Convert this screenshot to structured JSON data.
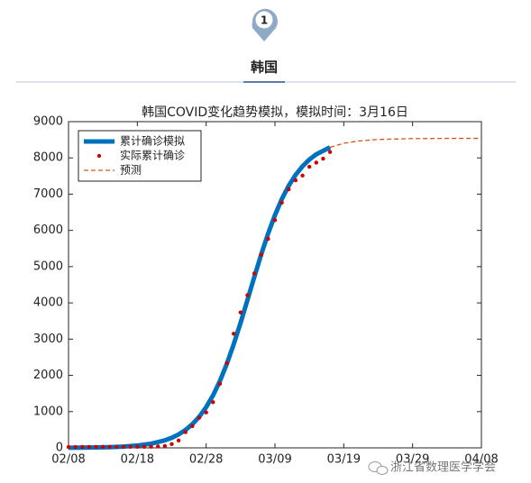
{
  "header": {
    "badge": "1",
    "title": "韩国"
  },
  "watermark": "浙江省数理医学学会",
  "chart_data": {
    "type": "line",
    "title": "韩国COVID变化趋势模拟，模拟时间：3月16日",
    "xlim": [
      0,
      60
    ],
    "xticks": [
      {
        "value": 0,
        "label": "02/08"
      },
      {
        "value": 10,
        "label": "02/18"
      },
      {
        "value": 20,
        "label": "02/28"
      },
      {
        "value": 30,
        "label": "03/09"
      },
      {
        "value": 40,
        "label": "03/19"
      },
      {
        "value": 50,
        "label": "03/29"
      },
      {
        "value": 60,
        "label": "04/08"
      }
    ],
    "ylim": [
      0,
      9000
    ],
    "yticks": [
      0,
      1000,
      2000,
      3000,
      4000,
      5000,
      6000,
      7000,
      8000,
      9000
    ],
    "grid": false,
    "legend": "upper-left",
    "series": [
      {
        "name": "累计确诊模拟",
        "color": "#0072bd",
        "style": "line",
        "x": [
          0,
          2,
          4,
          6,
          8,
          10,
          12,
          14,
          15,
          16,
          17,
          18,
          19,
          20,
          21,
          22,
          23,
          24,
          25,
          26,
          27,
          28,
          29,
          30,
          31,
          32,
          33,
          34,
          35,
          36,
          38
        ],
        "values": [
          3,
          6,
          11,
          19,
          35,
          64,
          115,
          208,
          278,
          371,
          494,
          654,
          859,
          1121,
          1447,
          1844,
          2314,
          2856,
          3448,
          4078,
          4716,
          5337,
          5910,
          6421,
          6865,
          7231,
          7531,
          7769,
          7955,
          8099,
          8292
        ]
      },
      {
        "name": "实际累计确诊",
        "color": "#d00000",
        "style": "dots",
        "x": [
          0,
          1,
          2,
          3,
          4,
          5,
          6,
          7,
          8,
          9,
          10,
          11,
          12,
          13,
          14,
          15,
          16,
          17,
          18,
          19,
          20,
          21,
          22,
          23,
          24,
          25,
          26,
          27,
          28,
          29,
          30,
          31,
          32,
          33,
          34,
          35,
          36,
          37,
          38
        ],
        "values": [
          24,
          24,
          25,
          27,
          27,
          28,
          28,
          28,
          28,
          29,
          30,
          31,
          31,
          40,
          51,
          104,
          204,
          433,
          602,
          833,
          977,
          1261,
          1766,
          2337,
          3150,
          3736,
          4212,
          4812,
          5328,
          5766,
          6284,
          6767,
          7134,
          7382,
          7513,
          7755,
          7869,
          7979,
          8162
        ]
      },
      {
        "name": "预测",
        "color": "#d95319",
        "style": "dashed",
        "x": [
          38,
          40,
          42,
          45,
          50,
          55,
          60
        ],
        "values": [
          8292,
          8402,
          8464,
          8509,
          8533,
          8538,
          8539
        ]
      }
    ]
  }
}
